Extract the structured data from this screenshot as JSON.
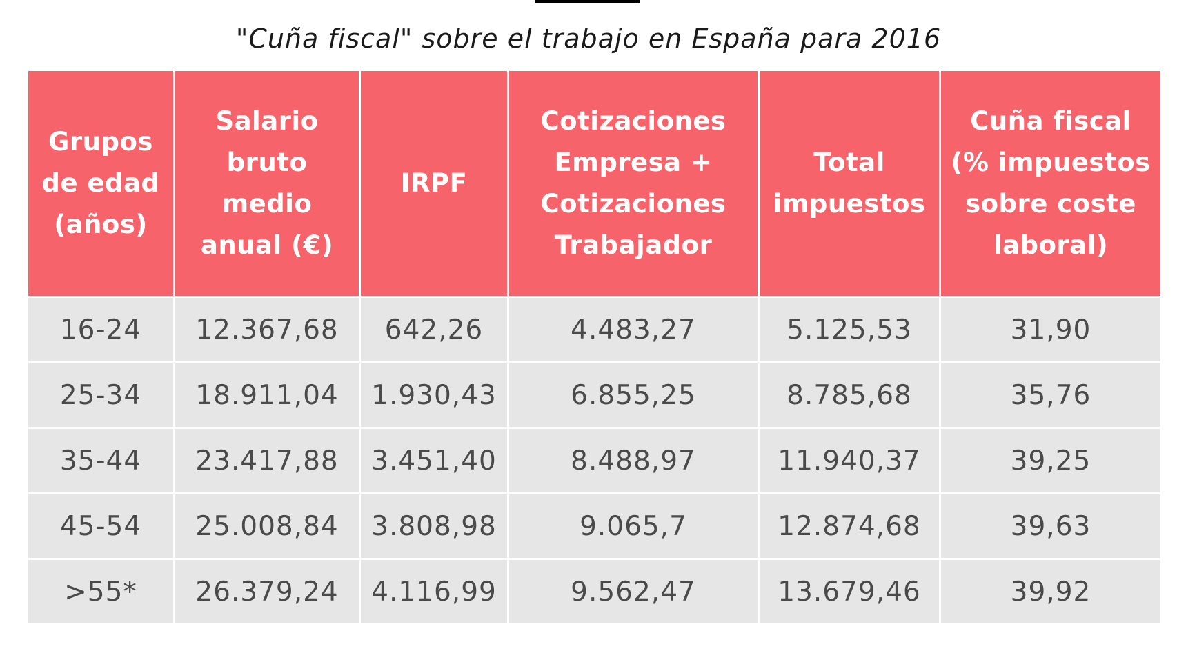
{
  "title": "\"Cuña fiscal\" sobre el trabajo en España para 2016",
  "table": {
    "headers": [
      "Grupos de edad (años)",
      "Salario bruto medio anual (€)",
      "IRPF",
      "Cotizaciones Empresa + Cotizaciones Trabajador",
      "Total impuestos",
      "Cuña fiscal (% impuestos sobre coste laboral)"
    ],
    "rows": [
      [
        "16-24",
        "12.367,68",
        "642,26",
        "4.483,27",
        "5.125,53",
        "31,90"
      ],
      [
        "25-34",
        "18.911,04",
        "1.930,43",
        "6.855,25",
        "8.785,68",
        "35,76"
      ],
      [
        "35-44",
        "23.417,88",
        "3.451,40",
        "8.488,97",
        "11.940,37",
        "39,25"
      ],
      [
        "45-54",
        "25.008,84",
        "3.808,98",
        "9.065,7",
        "12.874,68",
        "39,63"
      ],
      [
        ">55*",
        "26.379,24",
        "4.116,99",
        "9.562,47",
        "13.679,46",
        "39,92"
      ]
    ]
  },
  "colors": {
    "header_bg": "#f7636a",
    "header_text": "#ffffff",
    "cell_bg": "#e6e6e6",
    "cell_text": "#4a4a4a"
  }
}
